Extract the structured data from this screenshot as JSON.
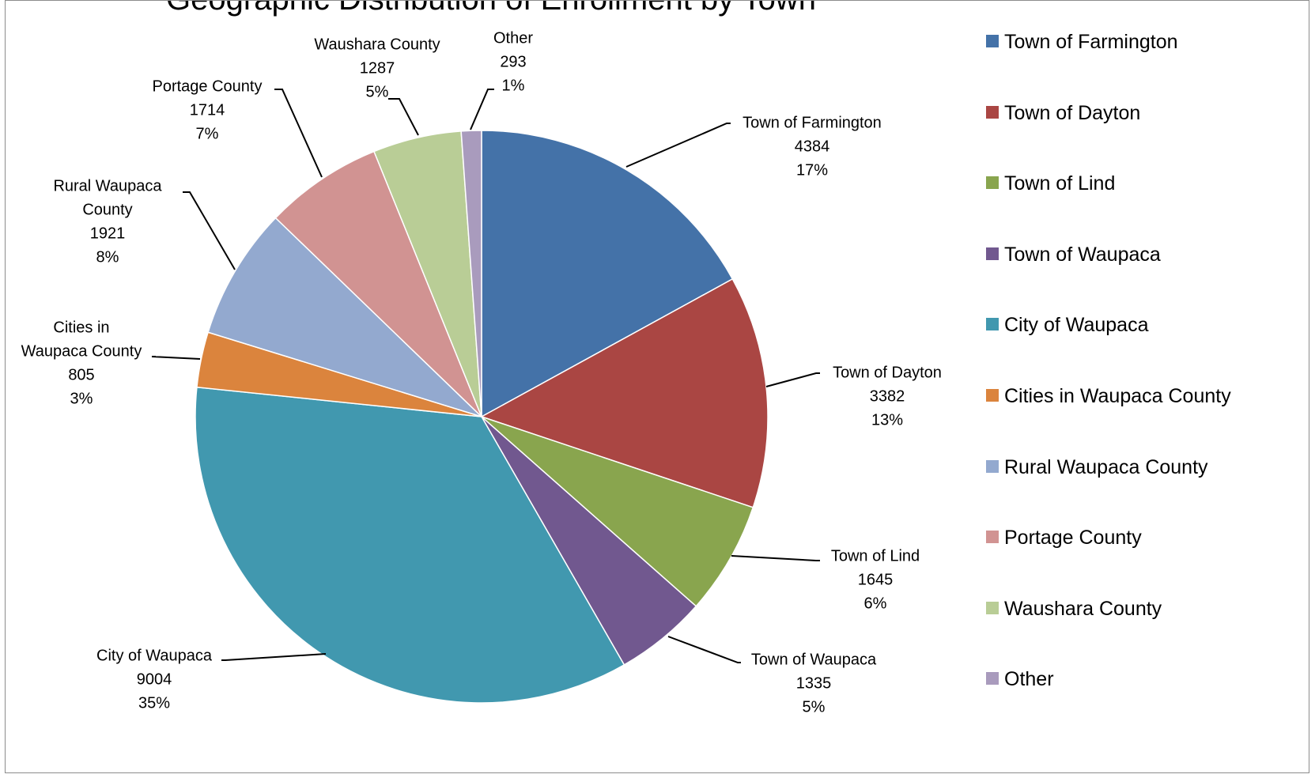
{
  "chart_data": {
    "type": "pie",
    "title": "Geographic Distribution of Enrollment by Town",
    "start_angle_deg": 0,
    "direction": "clockwise",
    "slices": [
      {
        "label": "Town of Farmington",
        "value": 4384,
        "percent": "17%",
        "color": "#4472a8",
        "data_label": [
          "Town of Farmington",
          "4384",
          "17%"
        ]
      },
      {
        "label": "Town of Dayton",
        "value": 3382,
        "percent": "13%",
        "color": "#aa4643",
        "data_label": [
          "Town of Dayton",
          "3382",
          "13%"
        ]
      },
      {
        "label": "Town of Lind",
        "value": 1645,
        "percent": "6%",
        "color": "#89a54e",
        "data_label": [
          "Town of Lind",
          "1645",
          "6%"
        ]
      },
      {
        "label": "Town of Waupaca",
        "value": 1335,
        "percent": "5%",
        "color": "#71588f",
        "data_label": [
          "Town of Waupaca",
          "1335",
          "5%"
        ]
      },
      {
        "label": "City of Waupaca",
        "value": 9004,
        "percent": "35%",
        "color": "#4198af",
        "data_label": [
          "City of Waupaca",
          "9004",
          "35%"
        ]
      },
      {
        "label": "Cities in Waupaca County",
        "value": 805,
        "percent": "3%",
        "color": "#db843d",
        "data_label": [
          "Cities in",
          "Waupaca County",
          "805",
          "3%"
        ]
      },
      {
        "label": "Rural Waupaca County",
        "value": 1921,
        "percent": "8%",
        "color": "#93a9cf",
        "data_label": [
          "Rural Waupaca",
          "County",
          "1921",
          "8%"
        ]
      },
      {
        "label": "Portage County",
        "value": 1714,
        "percent": "7%",
        "color": "#d19392",
        "data_label": [
          "Portage County",
          "1714",
          "7%"
        ]
      },
      {
        "label": "Waushara County",
        "value": 1287,
        "percent": "5%",
        "color": "#b9cd96",
        "data_label": [
          "Waushara County",
          "1287",
          "5%"
        ]
      },
      {
        "label": "Other",
        "value": 293,
        "percent": "1%",
        "color": "#a99bbd",
        "data_label": [
          "Other",
          "293",
          "1%"
        ]
      }
    ],
    "legend": {
      "position": "right",
      "items": [
        "Town of Farmington",
        "Town of Dayton",
        "Town of Lind",
        "Town of Waupaca",
        "City of Waupaca",
        "Cities in Waupaca County",
        "Rural Waupaca County",
        "Portage County",
        "Waushara County",
        "Other"
      ]
    }
  }
}
